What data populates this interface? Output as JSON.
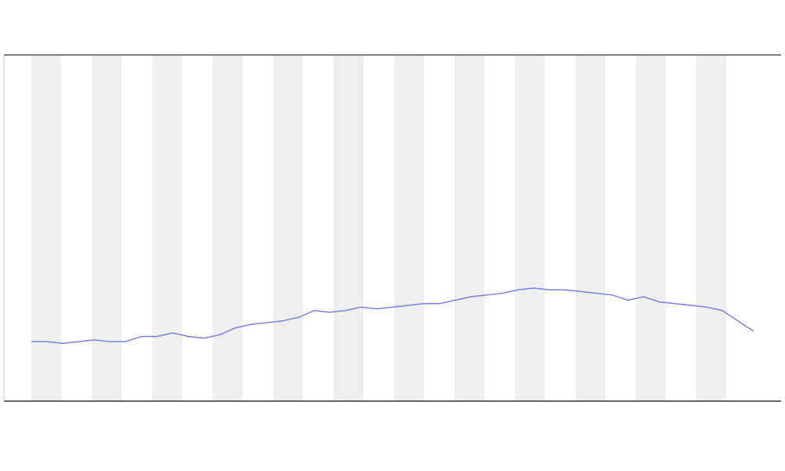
{
  "chart_data": {
    "type": "line",
    "shaded_bands": true,
    "categories": [
      null,
      null,
      null,
      null,
      null,
      null,
      null,
      null,
      null,
      null,
      null,
      null,
      null,
      null,
      null,
      null,
      null,
      null,
      null,
      null,
      null,
      null,
      null,
      null,
      null,
      null,
      null,
      null,
      null,
      null,
      null,
      null,
      null,
      null,
      null,
      null,
      null,
      null,
      null,
      null,
      null,
      null,
      null,
      null,
      null,
      null,
      null
    ],
    "ylim": [
      0,
      100
    ],
    "series": [
      {
        "color": "#7b7fe6",
        "values": [
          17,
          17,
          16.5,
          17,
          17.5,
          17,
          17,
          18.5,
          18.5,
          19.5,
          18.5,
          18,
          19,
          21,
          22,
          22.5,
          23,
          24,
          26,
          25.5,
          26,
          27,
          26.5,
          27,
          27.5,
          28,
          28,
          29,
          30,
          30.5,
          31,
          32,
          32.5,
          32,
          32,
          31.5,
          31,
          30.5,
          29,
          30,
          28.5,
          28,
          27.5,
          27,
          26,
          23,
          20
        ]
      }
    ]
  }
}
